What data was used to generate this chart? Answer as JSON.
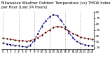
{
  "title": "Milwaukee Weather Outdoor Temperature (vs) THSW Index per Hour (Last 24 Hours)",
  "hours": [
    0,
    1,
    2,
    3,
    4,
    5,
    6,
    7,
    8,
    9,
    10,
    11,
    12,
    13,
    14,
    15,
    16,
    17,
    18,
    19,
    20,
    21,
    22,
    23
  ],
  "temp": [
    36,
    35,
    34,
    33,
    32,
    32,
    31,
    32,
    34,
    37,
    41,
    46,
    50,
    54,
    56,
    55,
    52,
    48,
    44,
    41,
    38,
    36,
    35,
    34
  ],
  "thsw": [
    28,
    26,
    25,
    24,
    23,
    22,
    21,
    24,
    32,
    44,
    56,
    65,
    72,
    76,
    74,
    66,
    56,
    45,
    37,
    30,
    27,
    25,
    24,
    23
  ],
  "temp_color": "#cc0000",
  "thsw_color": "#0000cc",
  "dot_color": "#000000",
  "bg_color": "#ffffff",
  "grid_color": "#888888",
  "ylim_min": 18,
  "ylim_max": 82,
  "yticks": [
    20,
    30,
    40,
    50,
    60,
    70,
    80
  ],
  "vgrid_hours": [
    0,
    4,
    8,
    12,
    16,
    20
  ],
  "title_fontsize": 3.8,
  "tick_fontsize": 3.2,
  "line_width": 0.8,
  "marker_size": 1.2
}
